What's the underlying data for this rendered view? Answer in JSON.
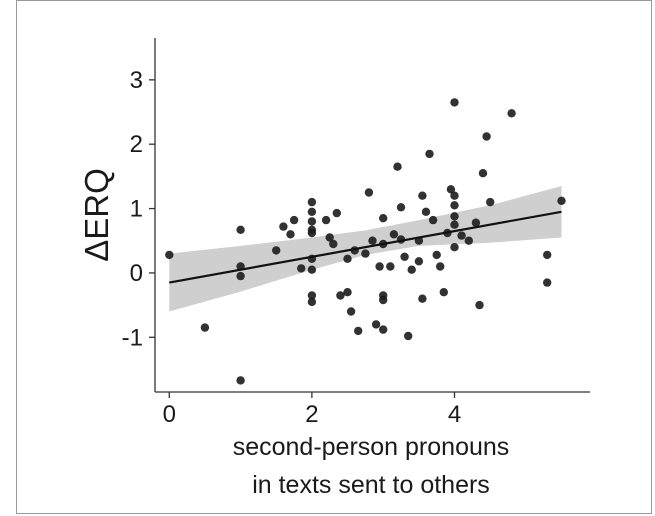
{
  "chart_data": {
    "type": "scatter",
    "title": "",
    "xlabel_lines": [
      "second-person pronouns",
      "in texts sent to others"
    ],
    "ylabel": "ΔERQ",
    "xlim": [
      -0.2,
      5.9
    ],
    "ylim": [
      -1.85,
      3.65
    ],
    "x_ticks": [
      0,
      2,
      4
    ],
    "x_tick_labels": [
      "0",
      "2",
      "4"
    ],
    "y_ticks": [
      -1,
      0,
      1,
      2,
      3
    ],
    "y_tick_labels": [
      "-1",
      "0",
      "1",
      "2",
      "3"
    ],
    "grid": false,
    "fit_line": {
      "x": [
        0,
        5.5
      ],
      "y": [
        -0.15,
        0.95
      ]
    },
    "confidence_band": {
      "x": [
        0,
        1,
        2,
        2.75,
        3.5,
        4.5,
        5.5
      ],
      "upper": [
        0.3,
        0.42,
        0.55,
        0.66,
        0.82,
        1.05,
        1.35
      ],
      "lower": [
        -0.6,
        -0.29,
        0.05,
        0.28,
        0.42,
        0.47,
        0.55
      ]
    },
    "points": [
      {
        "x": 0.0,
        "y": 0.28
      },
      {
        "x": 0.5,
        "y": -0.85
      },
      {
        "x": 1.0,
        "y": 0.67
      },
      {
        "x": 1.0,
        "y": 0.1
      },
      {
        "x": 1.0,
        "y": -0.05
      },
      {
        "x": 1.0,
        "y": -1.67
      },
      {
        "x": 1.5,
        "y": 0.35
      },
      {
        "x": 1.6,
        "y": 0.72
      },
      {
        "x": 1.7,
        "y": 0.6
      },
      {
        "x": 1.75,
        "y": 0.82
      },
      {
        "x": 1.85,
        "y": 0.07
      },
      {
        "x": 2.0,
        "y": 1.1
      },
      {
        "x": 2.0,
        "y": 0.95
      },
      {
        "x": 2.0,
        "y": 0.8
      },
      {
        "x": 2.0,
        "y": 0.67
      },
      {
        "x": 2.0,
        "y": 0.62
      },
      {
        "x": 2.0,
        "y": 0.22
      },
      {
        "x": 2.0,
        "y": 0.05
      },
      {
        "x": 2.0,
        "y": -0.35
      },
      {
        "x": 2.0,
        "y": -0.45
      },
      {
        "x": 2.2,
        "y": 0.82
      },
      {
        "x": 2.25,
        "y": 0.55
      },
      {
        "x": 2.3,
        "y": 0.45
      },
      {
        "x": 2.35,
        "y": 0.93
      },
      {
        "x": 2.4,
        "y": -0.35
      },
      {
        "x": 2.5,
        "y": -0.3
      },
      {
        "x": 2.5,
        "y": 0.22
      },
      {
        "x": 2.55,
        "y": -0.6
      },
      {
        "x": 2.6,
        "y": 0.35
      },
      {
        "x": 2.65,
        "y": -0.9
      },
      {
        "x": 2.75,
        "y": 0.3
      },
      {
        "x": 2.8,
        "y": 1.25
      },
      {
        "x": 2.85,
        "y": 0.5
      },
      {
        "x": 2.9,
        "y": -0.8
      },
      {
        "x": 2.95,
        "y": 0.1
      },
      {
        "x": 3.0,
        "y": 0.85
      },
      {
        "x": 3.0,
        "y": 0.45
      },
      {
        "x": 3.0,
        "y": -0.35
      },
      {
        "x": 3.0,
        "y": -0.42
      },
      {
        "x": 3.0,
        "y": -0.88
      },
      {
        "x": 3.1,
        "y": 0.1
      },
      {
        "x": 3.15,
        "y": 0.6
      },
      {
        "x": 3.2,
        "y": 1.65
      },
      {
        "x": 3.25,
        "y": 1.02
      },
      {
        "x": 3.25,
        "y": 0.52
      },
      {
        "x": 3.3,
        "y": 0.25
      },
      {
        "x": 3.35,
        "y": -0.98
      },
      {
        "x": 3.4,
        "y": 0.05
      },
      {
        "x": 3.5,
        "y": 0.18
      },
      {
        "x": 3.5,
        "y": 0.5
      },
      {
        "x": 3.55,
        "y": 1.2
      },
      {
        "x": 3.55,
        "y": -0.4
      },
      {
        "x": 3.6,
        "y": 0.95
      },
      {
        "x": 3.65,
        "y": 1.85
      },
      {
        "x": 3.7,
        "y": 0.82
      },
      {
        "x": 3.75,
        "y": 0.28
      },
      {
        "x": 3.8,
        "y": 0.1
      },
      {
        "x": 3.85,
        "y": -0.3
      },
      {
        "x": 3.9,
        "y": 0.62
      },
      {
        "x": 3.95,
        "y": 1.3
      },
      {
        "x": 4.0,
        "y": 1.2
      },
      {
        "x": 4.0,
        "y": 1.05
      },
      {
        "x": 4.0,
        "y": 0.88
      },
      {
        "x": 4.0,
        "y": 0.75
      },
      {
        "x": 4.0,
        "y": 2.65
      },
      {
        "x": 4.0,
        "y": 0.4
      },
      {
        "x": 4.1,
        "y": 0.58
      },
      {
        "x": 4.2,
        "y": 0.5
      },
      {
        "x": 4.3,
        "y": 0.78
      },
      {
        "x": 4.35,
        "y": -0.5
      },
      {
        "x": 4.4,
        "y": 1.55
      },
      {
        "x": 4.45,
        "y": 2.12
      },
      {
        "x": 4.5,
        "y": 1.1
      },
      {
        "x": 4.8,
        "y": 2.48
      },
      {
        "x": 5.3,
        "y": 0.28
      },
      {
        "x": 5.3,
        "y": -0.15
      },
      {
        "x": 5.5,
        "y": 1.12
      }
    ]
  }
}
